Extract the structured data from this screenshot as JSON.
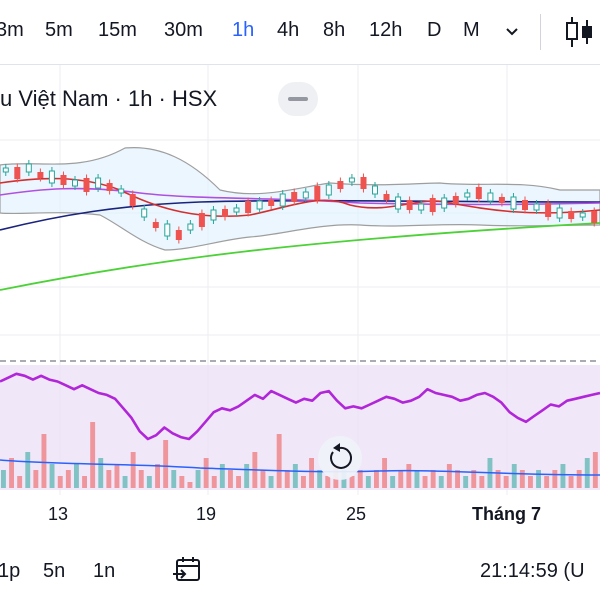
{
  "toolbar": {
    "timeframes": [
      {
        "label": "3m",
        "active": false
      },
      {
        "label": "5m",
        "active": false
      },
      {
        "label": "15m",
        "active": false
      },
      {
        "label": "30m",
        "active": false
      },
      {
        "label": "1h",
        "active": true
      },
      {
        "label": "4h",
        "active": false
      },
      {
        "label": "8h",
        "active": false
      },
      {
        "label": "12h",
        "active": false
      },
      {
        "label": "D",
        "active": false
      },
      {
        "label": "M",
        "active": false
      }
    ],
    "more_icon": "chevron-down-icon",
    "chart_type_icon": "candlestick-icon"
  },
  "legend": {
    "symbol": "u Việt Nam · 1h · HSX"
  },
  "colors": {
    "accent": "#2962ff",
    "up": "#26a69a",
    "down": "#ef5350",
    "rsi": "#b026d8",
    "ma_red": "#d32f2f",
    "ma_purple": "#b050e0",
    "ma_navy": "#1a237e",
    "ma_green": "#4cd137",
    "band": "#9e9e9e",
    "band_fill": "#e3f2fd"
  },
  "x_axis": {
    "labels": [
      "13",
      "19",
      "25",
      "Tháng 7"
    ]
  },
  "bottom_bar": {
    "ranges": [
      "1p",
      "5n",
      "1n"
    ],
    "calendar_icon": "calendar-goto-icon",
    "time": "21:14:59 (U"
  },
  "reset_icon": "reset-icon",
  "chart_data": {
    "type": "line",
    "series": [
      {
        "values": [
          54,
          56,
          58,
          57,
          55,
          57,
          55,
          54,
          52,
          50,
          52,
          50,
          48,
          47,
          45,
          40,
          35,
          28,
          24,
          26,
          30,
          27,
          25,
          24,
          28,
          33,
          38,
          40,
          39,
          41,
          44,
          47,
          45,
          49,
          47,
          45,
          43,
          45,
          44,
          48,
          49,
          44,
          40,
          41,
          40,
          42,
          44,
          46,
          45,
          43,
          44,
          46,
          50,
          48,
          47,
          46,
          44,
          45,
          47,
          48,
          46,
          43,
          38,
          35,
          33,
          36,
          39,
          42,
          41,
          44,
          45,
          46,
          47,
          48
        ]
      },
      {
        "values": [
          3,
          5,
          2,
          6,
          3,
          9,
          4,
          2,
          3,
          4,
          2,
          11,
          5,
          3,
          4,
          2,
          6,
          3,
          2,
          4,
          8,
          3,
          2,
          1,
          3,
          5,
          2,
          4,
          3,
          2,
          4,
          6,
          3,
          2,
          9,
          3,
          4,
          2,
          5,
          3,
          2,
          4,
          3,
          2,
          3,
          2,
          3,
          5,
          2,
          3,
          4,
          3,
          2,
          3,
          2,
          4,
          3,
          2,
          3,
          2,
          5,
          3,
          2,
          4,
          3,
          2,
          3,
          2,
          3,
          4,
          2,
          3,
          5,
          6
        ]
      }
    ]
  }
}
